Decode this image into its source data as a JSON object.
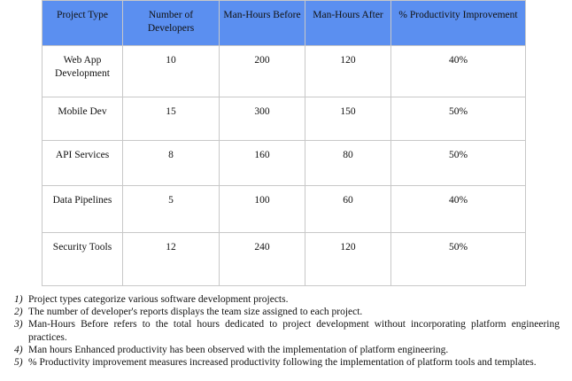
{
  "table": {
    "header": [
      "Project Type",
      "Number of Developers",
      "Man-Hours Before",
      "Man-Hours After",
      "% Productivity Improvement"
    ],
    "rows": [
      [
        "Web App Development",
        "10",
        "200",
        "120",
        "40%"
      ],
      [
        "Mobile Dev",
        "15",
        "300",
        "150",
        "50%"
      ],
      [
        "API Services",
        "8",
        "160",
        "80",
        "50%"
      ],
      [
        "Data Pipelines",
        "5",
        "100",
        "60",
        "40%"
      ],
      [
        "Security Tools",
        "12",
        "240",
        "120",
        "50%"
      ]
    ]
  },
  "notes": [
    {
      "marker": "1)",
      "text": "Project types categorize various software development projects."
    },
    {
      "marker": "2)",
      "text": "The number of developer's reports displays the team size assigned to each project."
    },
    {
      "marker": "3)",
      "text": "Man-Hours Before refers to the total hours dedicated to project development without incorporating platform engineering practices."
    },
    {
      "marker": "4)",
      "text": "Man hours Enhanced productivity has been observed with the implementation of platform engineering."
    },
    {
      "marker": "5)",
      "text": "% Productivity improvement measures increased productivity following the implementation of platform tools and templates."
    }
  ]
}
